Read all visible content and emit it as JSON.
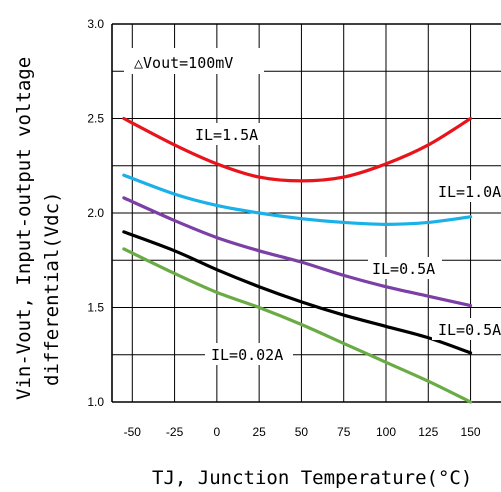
{
  "chart_data": {
    "type": "line",
    "xlabel": "TJ, Junction Temperature(°C)",
    "ylabel_line1": "Vin-Vout, Input-output voltage",
    "ylabel_line2": "differential(Vdc)",
    "x_ticks": [
      -50,
      -25,
      0,
      25,
      50,
      75,
      100,
      125,
      150
    ],
    "x_tick_labels": [
      "-50",
      "-25",
      "0",
      "25",
      "50",
      "75",
      "100",
      "125",
      "150"
    ],
    "xlim": [
      -62,
      168
    ],
    "y_ticks": [
      1.0,
      1.5,
      2.0,
      2.5,
      3.0
    ],
    "y_tick_labels": [
      "1.0",
      "1.5",
      "2.0",
      "2.5",
      "3.0"
    ],
    "ylim": [
      1.0,
      3.0
    ],
    "grid": true,
    "annotation": "△Vout=100mV",
    "series": [
      {
        "name": "IL=1.5A",
        "color": "#e8141b",
        "x": [
          -55,
          -25,
          0,
          25,
          50,
          75,
          100,
          125,
          150
        ],
        "y": [
          2.5,
          2.36,
          2.26,
          2.19,
          2.17,
          2.19,
          2.26,
          2.36,
          2.5
        ]
      },
      {
        "name": "IL=1.0A",
        "color": "#1ab0e8",
        "x": [
          -55,
          -25,
          0,
          25,
          50,
          75,
          100,
          125,
          150
        ],
        "y": [
          2.2,
          2.1,
          2.04,
          2.0,
          1.97,
          1.95,
          1.94,
          1.95,
          1.98
        ]
      },
      {
        "name": "IL=0.5A",
        "color": "#7b3fa6",
        "x": [
          -55,
          -25,
          0,
          25,
          50,
          75,
          100,
          125,
          150
        ],
        "y": [
          2.08,
          1.96,
          1.87,
          1.8,
          1.74,
          1.67,
          1.61,
          1.56,
          1.51
        ]
      },
      {
        "name": "IL=0.5A",
        "color": "#000000",
        "x": [
          -55,
          -25,
          0,
          25,
          50,
          75,
          100,
          125,
          150
        ],
        "y": [
          1.9,
          1.8,
          1.7,
          1.61,
          1.53,
          1.46,
          1.4,
          1.34,
          1.26
        ]
      },
      {
        "name": "IL=0.02A",
        "color": "#6aab45",
        "x": [
          -55,
          -25,
          0,
          25,
          50,
          75,
          100,
          125,
          150
        ],
        "y": [
          1.81,
          1.68,
          1.58,
          1.5,
          1.41,
          1.31,
          1.21,
          1.11,
          1.0
        ]
      }
    ],
    "series_labels": [
      "IL=1.5A",
      "IL=1.0A",
      "IL=0.5A",
      "IL=0.5A",
      "IL=0.02A"
    ]
  }
}
